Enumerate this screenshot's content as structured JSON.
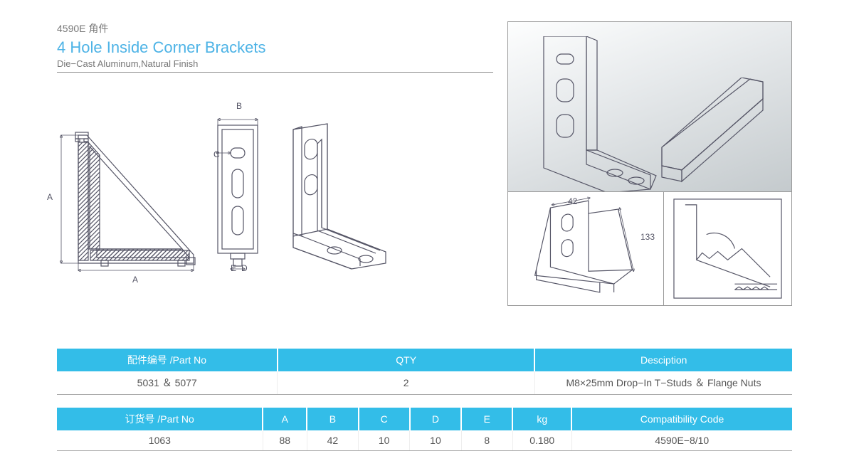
{
  "header": {
    "code": "4590E 角件",
    "title": "4 Hole Inside Corner Brackets",
    "subtitle": "Die−Cast Aluminum,Natural Finish"
  },
  "drawings": {
    "tri": {
      "labels": {
        "A_left": "A",
        "A_bottom": "A"
      }
    },
    "front": {
      "labels": {
        "B": "B",
        "C": "C",
        "E": "E",
        "D": "D"
      }
    },
    "small": {
      "w": "42",
      "h": "133"
    },
    "stroke_color": "#556b7a",
    "hatch_color": "#9aa7b0"
  },
  "photo": {
    "light_fill": "#d7dde0",
    "light_edge": "#b9c0c4",
    "dark_fill": "#4d4f50",
    "dark_edge": "#2c2d2e"
  },
  "accessory_table": {
    "columns": [
      "配件编号 /Part No",
      "QTY",
      "Desciption"
    ],
    "rows": [
      [
        "5031 ＆ 5077",
        "2",
        "M8×25mm Drop−In T−Studs ＆ Flange Nuts"
      ]
    ],
    "col_widths": [
      "30%",
      "35%",
      "35%"
    ]
  },
  "order_table": {
    "columns": [
      "订货号 /Part No",
      "A",
      "B",
      "C",
      "D",
      "E",
      "kg",
      "Compatibility Code"
    ],
    "rows": [
      [
        "1063",
        "88",
        "42",
        "10",
        "10",
        "8",
        "0.180",
        "4590E−8/10"
      ]
    ],
    "col_widths": [
      "28%",
      "6%",
      "7%",
      "7%",
      "7%",
      "7%",
      "8%",
      "30%"
    ]
  },
  "style": {
    "accent": "#33bde8",
    "title_color": "#4db3e6",
    "text_color": "#6e6e6e",
    "border_color": "#888888"
  }
}
